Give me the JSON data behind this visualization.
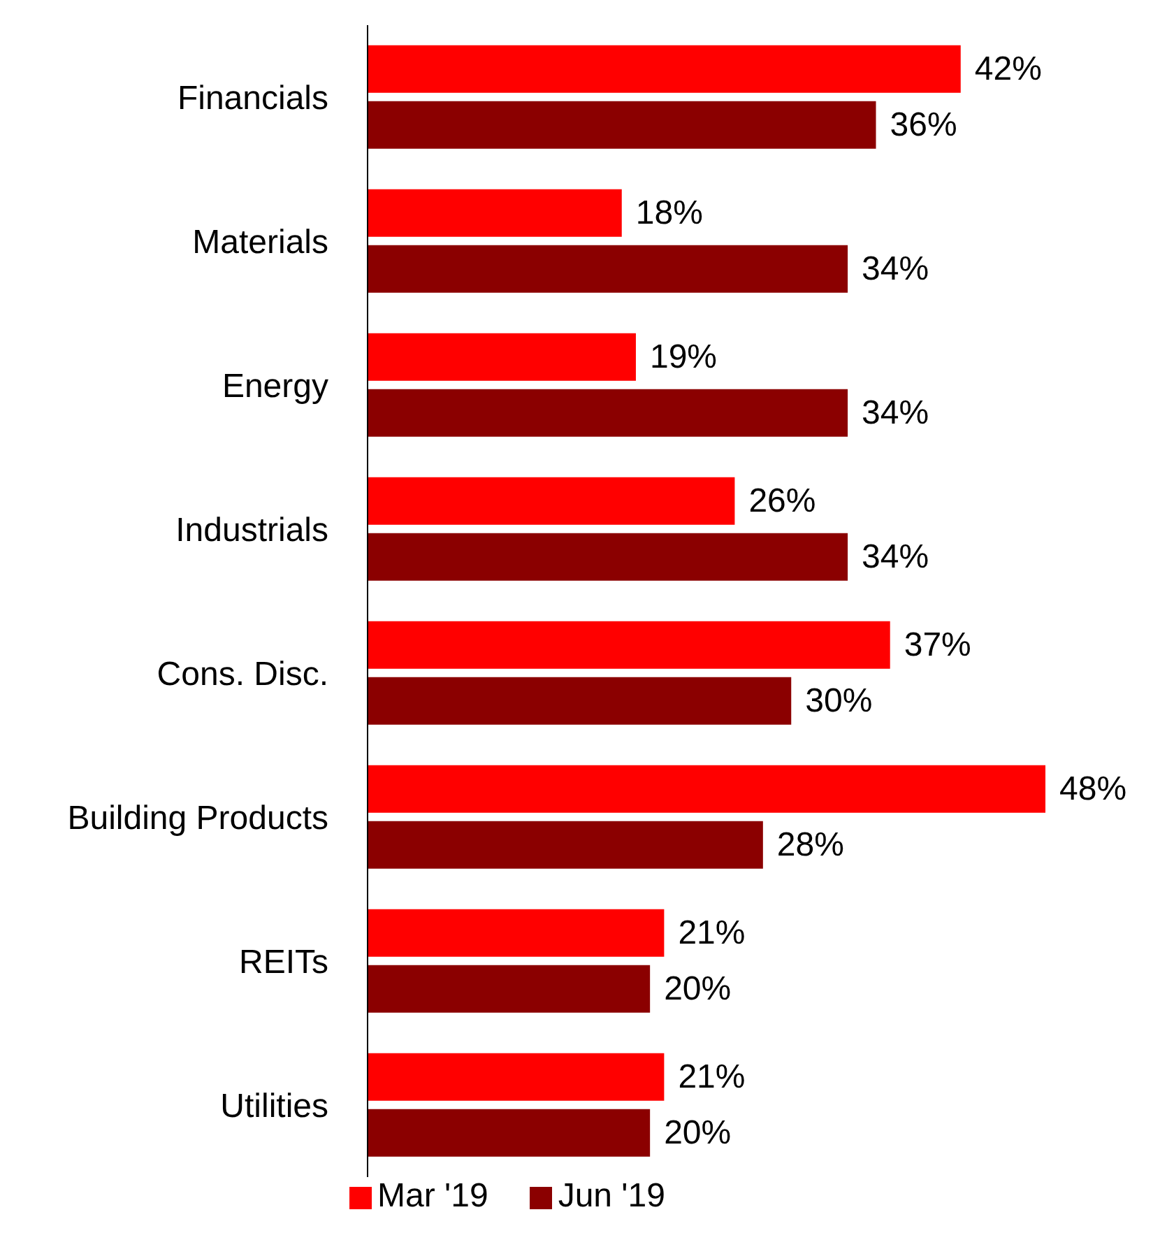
{
  "chart_data": {
    "type": "bar",
    "orientation": "horizontal",
    "categories": [
      "Financials",
      "Materials",
      "Energy",
      "Industrials",
      "Cons. Disc.",
      "Building Products",
      "REITs",
      "Utilities"
    ],
    "series": [
      {
        "name": "Mar '19",
        "color": "#ff0000",
        "values": [
          42,
          18,
          19,
          26,
          37,
          48,
          21,
          21
        ],
        "value_labels": [
          "42%",
          "18%",
          "19%",
          "26%",
          "37%",
          "48%",
          "21%",
          "21%"
        ]
      },
      {
        "name": "Jun '19",
        "color": "#8b0000",
        "values": [
          36,
          34,
          34,
          34,
          30,
          28,
          20,
          20
        ],
        "value_labels": [
          "36%",
          "34%",
          "34%",
          "34%",
          "30%",
          "28%",
          "20%",
          "20%"
        ]
      }
    ],
    "legend": "bottom",
    "grid": false
  }
}
